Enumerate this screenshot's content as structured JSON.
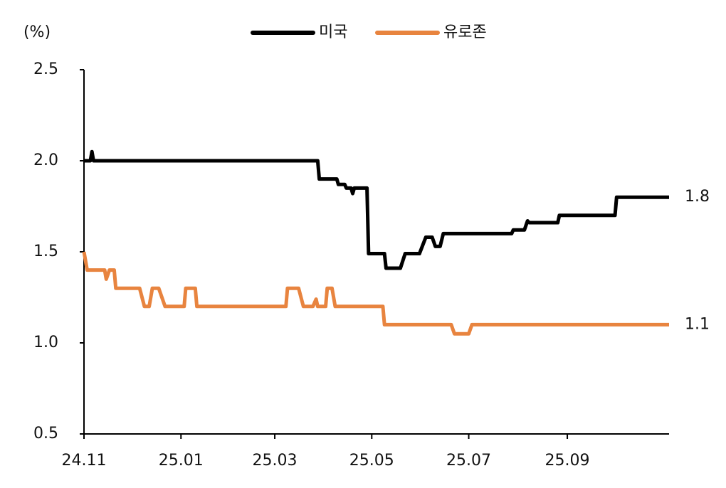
{
  "chart_data": {
    "type": "line",
    "y_label": "(%)",
    "xlim": [
      0,
      368
    ],
    "xticks": [
      {
        "value": 0,
        "label": "24.11"
      },
      {
        "value": 61,
        "label": "25.01"
      },
      {
        "value": 120,
        "label": "25.03"
      },
      {
        "value": 181,
        "label": "25.05"
      },
      {
        "value": 242,
        "label": "25.07"
      },
      {
        "value": 304,
        "label": "25.09"
      }
    ],
    "ylim": [
      0.5,
      2.5
    ],
    "yticks": [
      0.5,
      {
        "value": 1,
        "label": "1.0"
      },
      1.5,
      {
        "value": 2,
        "label": "2.0"
      },
      2.5
    ],
    "grid": false,
    "legend": "top",
    "series": [
      {
        "name": "미국",
        "color": "#000000",
        "x": [
          0,
          4,
          5,
          6,
          147,
          148,
          159,
          160,
          164,
          165,
          168,
          169,
          170,
          178,
          179,
          189,
          190,
          199,
          202,
          211,
          215,
          219,
          221,
          224,
          226,
          269,
          270,
          277,
          279,
          280,
          298,
          299,
          334,
          335,
          368
        ],
        "values": [
          2.0,
          2.0,
          2.05,
          2.0,
          2.0,
          1.9,
          1.9,
          1.87,
          1.87,
          1.85,
          1.85,
          1.82,
          1.85,
          1.85,
          1.49,
          1.49,
          1.41,
          1.41,
          1.49,
          1.49,
          1.58,
          1.58,
          1.53,
          1.53,
          1.6,
          1.6,
          1.62,
          1.62,
          1.67,
          1.66,
          1.66,
          1.7,
          1.7,
          1.8,
          1.8
        ]
      },
      {
        "name": "유로존",
        "color": "#e8843f",
        "x": [
          0,
          2,
          13,
          14,
          16,
          19,
          20,
          35,
          38,
          41,
          43,
          47,
          51,
          63,
          64,
          70,
          71,
          127,
          128,
          135,
          138,
          144,
          146,
          147,
          152,
          153,
          156,
          158,
          188,
          189,
          231,
          233,
          242,
          244,
          368
        ],
        "values": [
          1.5,
          1.4,
          1.4,
          1.35,
          1.4,
          1.4,
          1.3,
          1.3,
          1.2,
          1.2,
          1.3,
          1.3,
          1.2,
          1.2,
          1.3,
          1.3,
          1.2,
          1.2,
          1.3,
          1.3,
          1.2,
          1.2,
          1.24,
          1.2,
          1.2,
          1.3,
          1.3,
          1.2,
          1.2,
          1.1,
          1.1,
          1.05,
          1.05,
          1.1,
          1.1
        ]
      }
    ]
  }
}
